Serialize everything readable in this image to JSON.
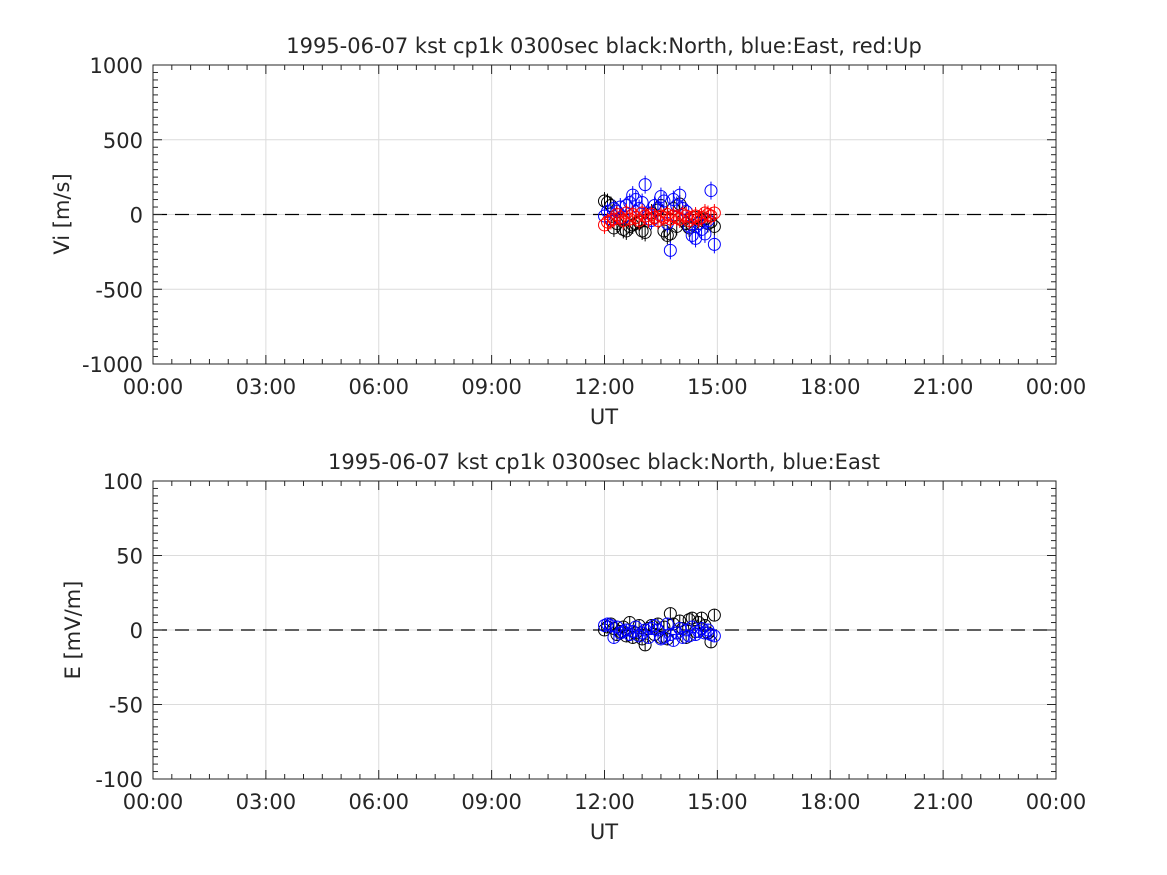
{
  "chart_data": [
    {
      "type": "scatter",
      "title": "1995-06-07 kst cp1k 0300sec black:North, blue:East, red:Up",
      "xlabel": "UT",
      "ylabel": "Vi [m/s]",
      "xlim_hours": [
        0,
        24
      ],
      "ylim": [
        -1000,
        1000
      ],
      "xtick_labels": [
        "00:00",
        "03:00",
        "06:00",
        "09:00",
        "12:00",
        "15:00",
        "18:00",
        "21:00",
        "00:00"
      ],
      "ytick_values": [
        1000,
        500,
        0,
        -500,
        -1000
      ],
      "ytick_labels": [
        "1000",
        "500",
        "0",
        "-500",
        "-1000"
      ],
      "grid": true,
      "zero_line": "dashed",
      "series": [
        {
          "name": "North",
          "color": "#000000",
          "x": [
            12.0,
            12.08,
            12.17,
            12.25,
            12.33,
            12.42,
            12.5,
            12.58,
            12.67,
            12.75,
            12.83,
            12.92,
            13.0,
            13.08,
            13.17,
            13.25,
            13.33,
            13.42,
            13.5,
            13.58,
            13.67,
            13.75,
            13.83,
            13.92,
            14.0,
            14.08,
            14.17,
            14.25,
            14.33,
            14.42,
            14.5,
            14.58,
            14.67,
            14.75,
            14.83,
            14.92
          ],
          "y": [
            90,
            80,
            60,
            -90,
            -60,
            -30,
            -100,
            -110,
            -80,
            -70,
            -60,
            -50,
            -110,
            -120,
            -30,
            10,
            -20,
            30,
            60,
            -110,
            -140,
            -130,
            40,
            -80,
            70,
            -40,
            -60,
            -90,
            -70,
            -20,
            -60,
            -40,
            -30,
            -60,
            -50,
            -80
          ]
        },
        {
          "name": "East",
          "color": "#0000ff",
          "x": [
            12.0,
            12.08,
            12.17,
            12.25,
            12.33,
            12.42,
            12.5,
            12.58,
            12.67,
            12.75,
            12.83,
            12.92,
            13.0,
            13.08,
            13.17,
            13.25,
            13.33,
            13.42,
            13.5,
            13.58,
            13.67,
            13.75,
            13.83,
            13.92,
            14.0,
            14.08,
            14.17,
            14.25,
            14.33,
            14.42,
            14.5,
            14.58,
            14.67,
            14.75,
            14.83,
            14.92
          ],
          "y": [
            -10,
            20,
            -30,
            40,
            20,
            50,
            -20,
            60,
            80,
            130,
            100,
            40,
            80,
            200,
            10,
            -40,
            60,
            40,
            120,
            90,
            -60,
            -240,
            100,
            60,
            130,
            40,
            20,
            -80,
            -140,
            -160,
            -60,
            -100,
            -130,
            -40,
            160,
            -200
          ]
        },
        {
          "name": "Up",
          "color": "#ff0000",
          "x": [
            12.0,
            12.08,
            12.17,
            12.25,
            12.33,
            12.42,
            12.5,
            12.58,
            12.67,
            12.75,
            12.83,
            12.92,
            13.0,
            13.08,
            13.17,
            13.25,
            13.33,
            13.42,
            13.5,
            13.58,
            13.67,
            13.75,
            13.83,
            13.92,
            14.0,
            14.08,
            14.17,
            14.25,
            14.33,
            14.42,
            14.5,
            14.58,
            14.67,
            14.75,
            14.83,
            14.92
          ],
          "y": [
            -70,
            -50,
            -40,
            -30,
            0,
            -20,
            -40,
            10,
            -30,
            0,
            -20,
            -40,
            10,
            -10,
            -30,
            0,
            -20,
            -40,
            -10,
            -20,
            0,
            -30,
            -10,
            -20,
            -30,
            0,
            -10,
            -40,
            -20,
            -10,
            -30,
            -20,
            10,
            0,
            -10,
            10
          ]
        }
      ]
    },
    {
      "type": "scatter",
      "title": "1995-06-07 kst cp1k 0300sec black:North, blue:East",
      "xlabel": "UT",
      "ylabel": "E [mV/m]",
      "xlim_hours": [
        0,
        24
      ],
      "ylim": [
        -100,
        100
      ],
      "xtick_labels": [
        "00:00",
        "03:00",
        "06:00",
        "09:00",
        "12:00",
        "15:00",
        "18:00",
        "21:00",
        "00:00"
      ],
      "ytick_values": [
        100,
        50,
        0,
        -50,
        -100
      ],
      "ytick_labels": [
        "100",
        "50",
        "0",
        "-50",
        "-100"
      ],
      "grid": true,
      "zero_line": "dashed",
      "series": [
        {
          "name": "North",
          "color": "#000000",
          "x": [
            12.0,
            12.08,
            12.17,
            12.25,
            12.33,
            12.42,
            12.5,
            12.58,
            12.67,
            12.75,
            12.83,
            12.92,
            13.0,
            13.08,
            13.17,
            13.25,
            13.33,
            13.42,
            13.5,
            13.58,
            13.67,
            13.75,
            13.83,
            13.92,
            14.0,
            14.08,
            14.17,
            14.25,
            14.33,
            14.42,
            14.5,
            14.58,
            14.67,
            14.75,
            14.83,
            14.92
          ],
          "y": [
            0,
            2,
            4,
            1,
            -3,
            -1,
            2,
            -4,
            5,
            -5,
            -2,
            3,
            -6,
            -10,
            1,
            3,
            -3,
            4,
            -5,
            2,
            -6,
            11,
            4,
            -2,
            6,
            1,
            -5,
            7,
            8,
            -1,
            5,
            8,
            3,
            -2,
            -8,
            10
          ]
        },
        {
          "name": "East",
          "color": "#0000ff",
          "x": [
            12.0,
            12.08,
            12.17,
            12.25,
            12.33,
            12.42,
            12.5,
            12.58,
            12.67,
            12.75,
            12.83,
            12.92,
            13.0,
            13.08,
            13.17,
            13.25,
            13.33,
            13.42,
            13.5,
            13.58,
            13.67,
            13.75,
            13.83,
            13.92,
            14.0,
            14.08,
            14.17,
            14.25,
            14.33,
            14.42,
            14.5,
            14.58,
            14.67,
            14.75,
            14.83,
            14.92
          ],
          "y": [
            3,
            4,
            3,
            -5,
            2,
            -2,
            -1,
            0,
            -3,
            -1,
            2,
            -4,
            -2,
            0,
            -5,
            1,
            3,
            0,
            -6,
            -5,
            4,
            -3,
            -7,
            -2,
            1,
            -5,
            0,
            -4,
            2,
            -3,
            -1,
            1,
            -2,
            0,
            -3,
            -4
          ]
        }
      ]
    }
  ]
}
